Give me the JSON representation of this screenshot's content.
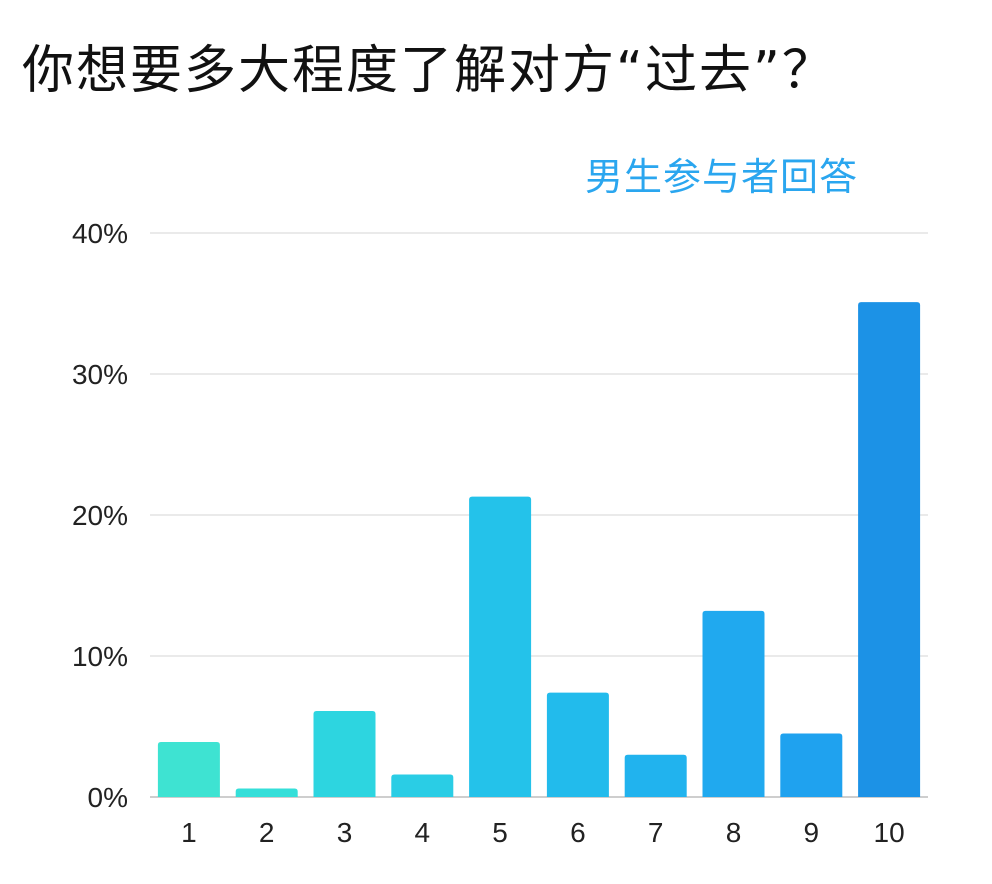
{
  "chart_data": {
    "type": "bar",
    "title": "你想要多大程度了解对方“过去”？",
    "subtitle": "男生参与者回答",
    "categories": [
      "1",
      "2",
      "3",
      "4",
      "5",
      "6",
      "7",
      "8",
      "9",
      "10"
    ],
    "values": [
      3.9,
      0.6,
      6.1,
      1.6,
      21.3,
      7.4,
      3.0,
      13.2,
      4.5,
      35.1
    ],
    "y_ticks": [
      "0%",
      "10%",
      "20%",
      "30%",
      "40%"
    ],
    "ylim": [
      0,
      40
    ],
    "grid": true,
    "colors": [
      "#3ee3d2",
      "#35dfd9",
      "#2dd5e0",
      "#2acde5",
      "#24c2ea",
      "#22bbec",
      "#21b3ee",
      "#20a9ef",
      "#1fa2ef",
      "#1c92e6"
    ],
    "subtitle_color": "#2aa6ef"
  }
}
